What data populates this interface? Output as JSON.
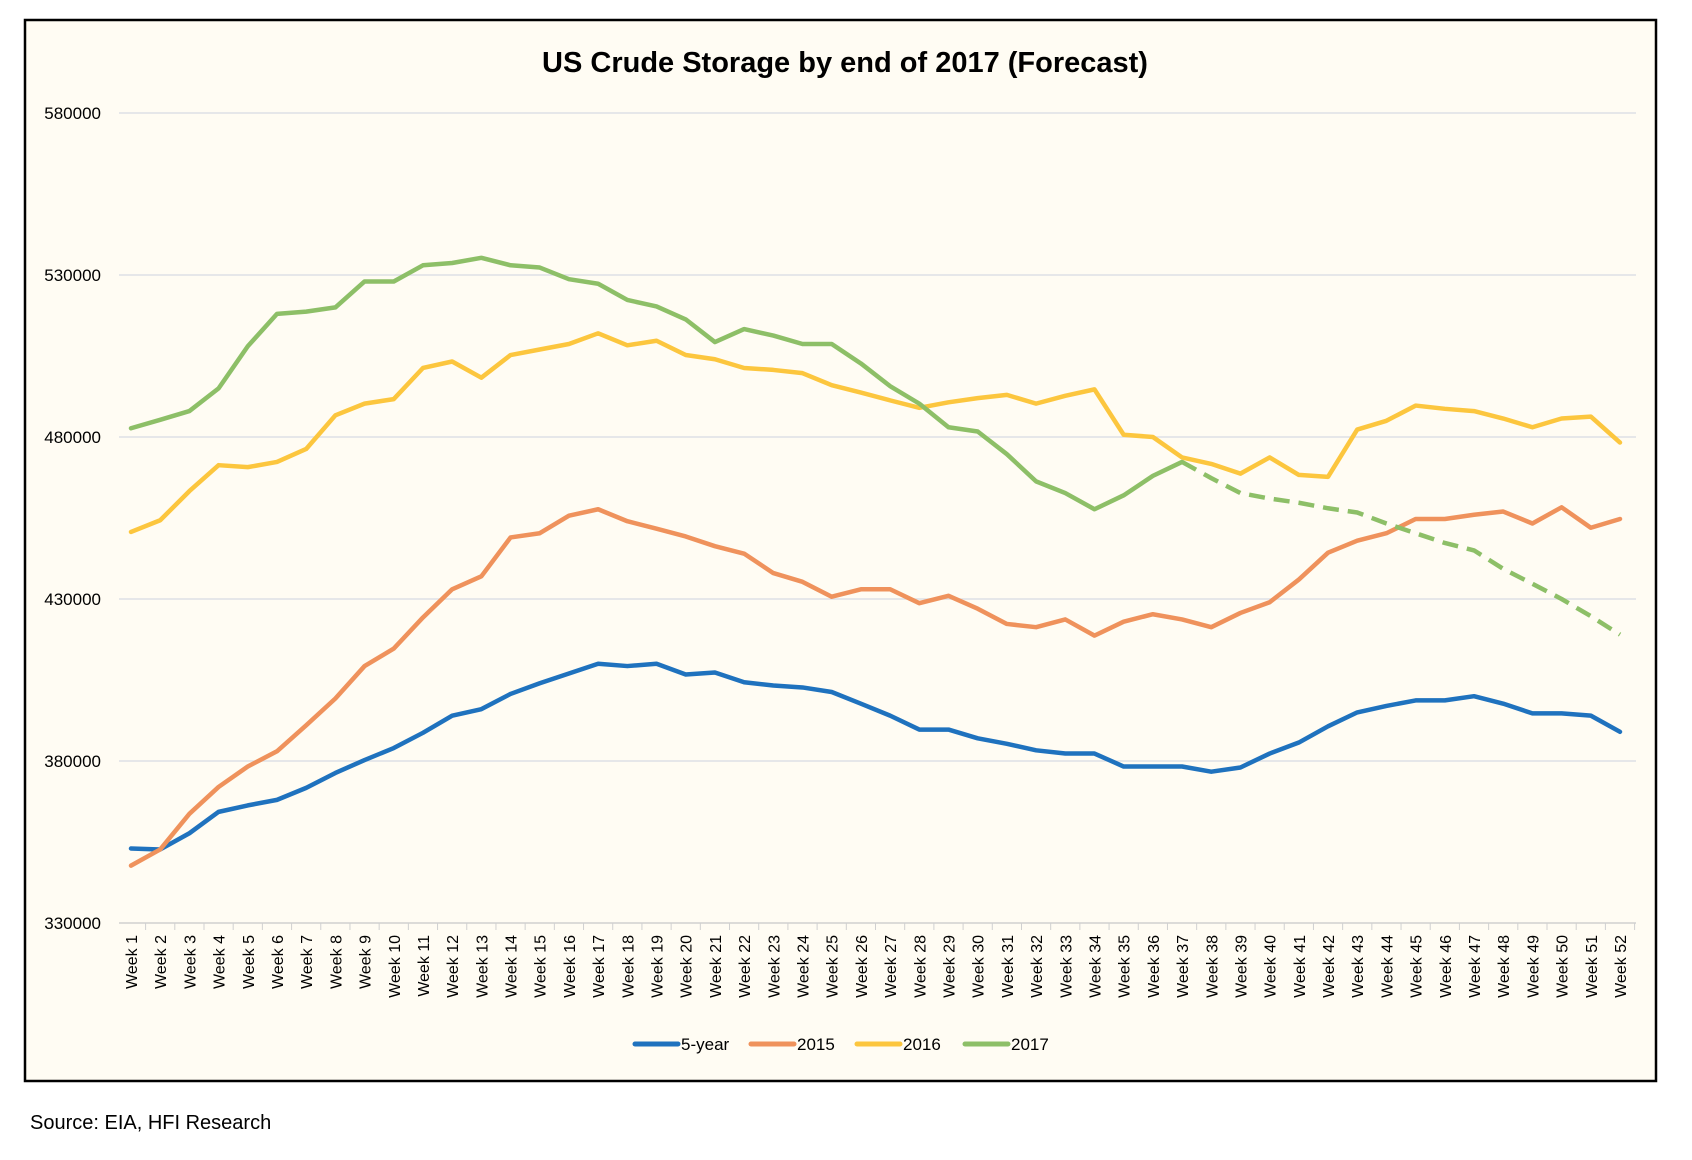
{
  "chart_data": {
    "type": "line",
    "title": "US Crude Storage by end of 2017 (Forecast)",
    "xlabel": "",
    "ylabel": "",
    "ylim": [
      330000,
      580000
    ],
    "yticks": [
      330000,
      380000,
      430000,
      480000,
      530000,
      580000
    ],
    "grid": true,
    "legend_position": "bottom",
    "categories": [
      "Week 1",
      "Week 2",
      "Week 3",
      "Week 4",
      "Week 5",
      "Week 6",
      "Week 7",
      "Week 8",
      "Week 9",
      "Week 10",
      "Week 11",
      "Week 12",
      "Week 13",
      "Week 14",
      "Week 15",
      "Week 16",
      "Week 17",
      "Week 18",
      "Week 19",
      "Week 20",
      "Week 21",
      "Week 22",
      "Week 23",
      "Week 24",
      "Week 25",
      "Week 26",
      "Week 27",
      "Week 28",
      "Week 29",
      "Week 30",
      "Week 31",
      "Week 32",
      "Week 33",
      "Week 34",
      "Week 35",
      "Week 36",
      "Week 37",
      "Week 38",
      "Week 39",
      "Week 40",
      "Week 41",
      "Week 42",
      "Week 43",
      "Week 44",
      "Week 45",
      "Week 46",
      "Week 47",
      "Week 48",
      "Week 49",
      "Week 50",
      "Week 51",
      "Week 52"
    ],
    "series": [
      {
        "name": "5-year",
        "color": "#1f72be",
        "values": [
          353000,
          352700,
          357700,
          364300,
          366300,
          368000,
          371700,
          376300,
          380300,
          384000,
          388700,
          394000,
          396000,
          400700,
          404000,
          407000,
          410000,
          409300,
          410000,
          406700,
          407300,
          404300,
          403300,
          402700,
          401300,
          397700,
          394000,
          389700,
          389700,
          387000,
          385300,
          383300,
          382300,
          382300,
          378300,
          378300,
          378300,
          376700,
          378000,
          382300,
          385700,
          390700,
          395000,
          397000,
          398700,
          398700,
          400000,
          397700,
          394700,
          394700,
          394000,
          389000
        ]
      },
      {
        "name": "2015",
        "color": "#ef925c",
        "values": [
          347700,
          352700,
          363700,
          372000,
          378300,
          383000,
          391000,
          399300,
          409300,
          414700,
          424300,
          433000,
          437000,
          449000,
          450300,
          455700,
          457700,
          454000,
          451700,
          449300,
          446300,
          444000,
          438000,
          435300,
          430700,
          433000,
          433000,
          428700,
          431000,
          427000,
          422300,
          421300,
          423700,
          418700,
          423000,
          425300,
          423700,
          421300,
          425700,
          429000,
          436000,
          444300,
          448000,
          450300,
          454700,
          454700,
          456000,
          457000,
          453300,
          458300,
          452000,
          454700
        ]
      },
      {
        "name": "2016",
        "color": "#fcc63e",
        "values": [
          450700,
          454300,
          463300,
          471300,
          470700,
          472300,
          476300,
          486700,
          490300,
          491700,
          501300,
          503300,
          498300,
          505300,
          507000,
          508700,
          512000,
          508300,
          509700,
          505300,
          504000,
          501300,
          500700,
          499700,
          496000,
          493700,
          491300,
          489000,
          490700,
          492000,
          493000,
          490300,
          492700,
          494700,
          480700,
          480000,
          473700,
          471700,
          468700,
          473700,
          468300,
          467700,
          482300,
          485000,
          489700,
          488700,
          488000,
          485700,
          483000,
          485700,
          486300,
          478300
        ]
      },
      {
        "name": "2017",
        "color": "#8dbf67",
        "dashed_from_week": 37,
        "values": [
          482700,
          485300,
          488000,
          495000,
          508000,
          518000,
          518700,
          520000,
          528000,
          528000,
          533000,
          533700,
          535300,
          533000,
          532300,
          528700,
          527300,
          522300,
          520300,
          516300,
          509300,
          513300,
          511300,
          508700,
          508700,
          502700,
          495700,
          490300,
          483000,
          481700,
          474700,
          466300,
          462700,
          457700,
          462000,
          468000,
          472300,
          467300,
          462700,
          461000,
          459700,
          458000,
          456700,
          453300,
          450300,
          447300,
          445000,
          439300,
          434700,
          430000,
          424700,
          419000
        ]
      }
    ]
  },
  "background_color": "#fffcf3",
  "source": "Source: EIA, HFI Research"
}
